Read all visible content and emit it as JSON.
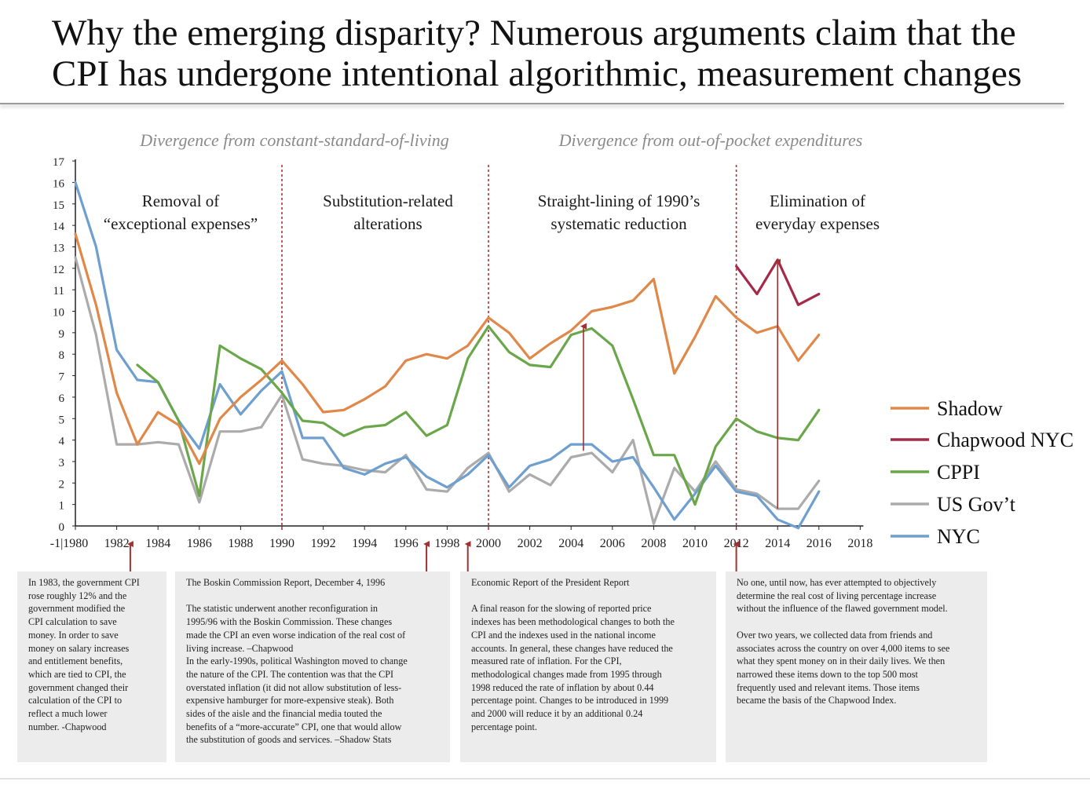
{
  "title": {
    "line1": "Why the emerging disparity? Numerous arguments claim that the",
    "line2": "CPI has undergone intentional algorithmic, measurement changes"
  },
  "colors": {
    "shadow": "#e0884a",
    "chapwood": "#a32a48",
    "cppi": "#6aa74a",
    "usgov": "#ababab",
    "nyc": "#6e9fcf",
    "divider": "#b03030",
    "arrow": "#a33030"
  },
  "chart_data": {
    "type": "line",
    "xlim": [
      1980,
      2018
    ],
    "ylim": [
      0,
      17
    ],
    "x_ticks": [
      "-1|1980",
      "1982",
      "1984",
      "1986",
      "1988",
      "1990",
      "1992",
      "1994",
      "1996",
      "1998",
      "2000",
      "2002",
      "2004",
      "2006",
      "2008",
      "2010",
      "2012",
      "2014",
      "2016",
      "2018"
    ],
    "y_ticks": [
      "0",
      "1",
      "2",
      "3",
      "4",
      "5",
      "6",
      "7",
      "8",
      "9",
      "10",
      "11",
      "12",
      "13",
      "14",
      "15",
      "16",
      "17"
    ],
    "grid": false,
    "legend_position": "right",
    "section_headers": [
      "Divergence from constant-standard-of-living",
      "Divergence from out-of-pocket expenditures"
    ],
    "eras": [
      {
        "line1": "Removal of",
        "line2": "“exceptional expenses”"
      },
      {
        "line1": "Substitution-related",
        "line2": "alterations"
      },
      {
        "line1": "Straight-lining of 1990’s",
        "line2": "systematic reduction"
      },
      {
        "line1": "Elimination of",
        "line2": "everyday expenses"
      }
    ],
    "dividers": [
      1990,
      2000,
      2012
    ],
    "markers": [
      1983,
      1997,
      1999,
      2012
    ],
    "gap_arrows": [
      {
        "x": 2004.6,
        "from": 3.5,
        "to": 9.3
      },
      {
        "x": 2014,
        "from": 0.8,
        "to": 12.3
      }
    ],
    "series": [
      {
        "name": "Shadow",
        "x": [
          1980,
          1981,
          1982,
          1983,
          1984,
          1985,
          1986,
          1987,
          1988,
          1989,
          1990,
          1991,
          1992,
          1993,
          1994,
          1995,
          1996,
          1997,
          1998,
          1999,
          2000,
          2001,
          2002,
          2003,
          2004,
          2005,
          2006,
          2007,
          2008,
          2009,
          2010,
          2011,
          2012,
          2013,
          2014,
          2015,
          2016
        ],
        "y": [
          13.6,
          10.3,
          6.2,
          3.8,
          5.3,
          4.7,
          2.9,
          5.0,
          6.0,
          6.8,
          7.7,
          6.6,
          5.3,
          5.4,
          5.9,
          6.5,
          7.7,
          8.0,
          7.8,
          8.4,
          9.7,
          9.0,
          7.8,
          8.5,
          9.1,
          10.0,
          10.2,
          10.5,
          11.5,
          7.1,
          8.8,
          10.7,
          9.7,
          9.0,
          9.3,
          7.7,
          8.9
        ]
      },
      {
        "name": "Chapwood NYC",
        "x": [
          2012,
          2013,
          2014,
          2015,
          2016
        ],
        "y": [
          12.1,
          10.8,
          12.4,
          10.3,
          10.8
        ]
      },
      {
        "name": "CPPI",
        "x": [
          1983,
          1984,
          1985,
          1986,
          1987,
          1988,
          1989,
          1990,
          1991,
          1992,
          1993,
          1994,
          1995,
          1996,
          1997,
          1998,
          1999,
          2000,
          2001,
          2002,
          2003,
          2004,
          2005,
          2006,
          2007,
          2008,
          2009,
          2010,
          2011,
          2012,
          2013,
          2014,
          2015,
          2016
        ],
        "y": [
          7.5,
          6.7,
          4.9,
          1.4,
          8.4,
          7.8,
          7.3,
          6.2,
          4.9,
          4.8,
          4.2,
          4.6,
          4.7,
          5.3,
          4.2,
          4.7,
          7.8,
          9.3,
          8.1,
          7.5,
          7.4,
          8.9,
          9.2,
          8.4,
          5.9,
          3.3,
          3.3,
          1.0,
          3.7,
          5.0,
          4.4,
          4.1,
          4.0,
          5.4
        ]
      },
      {
        "name": "US Gov’t",
        "x": [
          1980,
          1981,
          1982,
          1983,
          1984,
          1985,
          1986,
          1987,
          1988,
          1989,
          1990,
          1991,
          1992,
          1993,
          1994,
          1995,
          1996,
          1997,
          1998,
          1999,
          2000,
          2001,
          2002,
          2003,
          2004,
          2005,
          2006,
          2007,
          2008,
          2009,
          2010,
          2011,
          2012,
          2013,
          2014,
          2015,
          2016
        ],
        "y": [
          12.5,
          8.9,
          3.8,
          3.8,
          3.9,
          3.8,
          1.1,
          4.4,
          4.4,
          4.6,
          6.1,
          3.1,
          2.9,
          2.8,
          2.6,
          2.5,
          3.3,
          1.7,
          1.6,
          2.7,
          3.4,
          1.6,
          2.4,
          1.9,
          3.2,
          3.4,
          2.5,
          4.0,
          0.1,
          2.7,
          1.6,
          3.0,
          1.7,
          1.5,
          0.8,
          0.8,
          2.1
        ]
      },
      {
        "name": "NYC",
        "x": [
          1980,
          1981,
          1982,
          1983,
          1984,
          1985,
          1986,
          1987,
          1988,
          1989,
          1990,
          1991,
          1992,
          1993,
          1994,
          1995,
          1996,
          1997,
          1998,
          1999,
          2000,
          2001,
          2002,
          2003,
          2004,
          2005,
          2006,
          2007,
          2008,
          2009,
          2010,
          2011,
          2012,
          2013,
          2014,
          2015,
          2016
        ],
        "y": [
          16.0,
          13.0,
          8.2,
          6.8,
          6.7,
          4.9,
          3.6,
          6.6,
          5.2,
          6.3,
          7.2,
          4.1,
          4.1,
          2.7,
          2.4,
          2.9,
          3.2,
          2.3,
          1.8,
          2.4,
          3.3,
          1.8,
          2.8,
          3.1,
          3.8,
          3.8,
          3.0,
          3.2,
          1.8,
          0.3,
          1.5,
          2.8,
          1.6,
          1.4,
          0.3,
          -0.1,
          1.6
        ]
      }
    ]
  },
  "notes": [
    {
      "text": "In 1983, the government CPI\nrose roughly 12% and the\ngovernment modified the\nCPI calculation to save\nmoney. In order to save\nmoney on salary increases\nand entitlement benefits,\nwhich are tied to CPI, the\ngovernment changed their\ncalculation of the CPI to\nreflect a much lower\nnumber. -Chapwood"
    },
    {
      "heading": "The Boskin Commission Report, December 4, 1996",
      "text": "The statistic underwent another reconfiguration in\n1995/96 with the Boskin Commission. These changes\nmade the CPI an even worse indication of the real cost of\nliving increase. –Chapwood\nIn the early-1990s, political Washington moved to change\nthe nature of the CPI. The contention was that the CPI\noverstated inflation (it did not allow substitution of less-\nexpensive hamburger for more-expensive steak). Both\nsides of the aisle and the financial media touted the\nbenefits of a “more-accurate” CPI, one that would allow\nthe substitution of goods and services. –Shadow Stats"
    },
    {
      "heading": "Economic Report of the President Report",
      "text": "A final reason for the slowing of reported price\nindexes has been methodological changes to both the\nCPI and the indexes used in the national income\naccounts. In general, these changes have reduced the\nmeasured rate of inflation. For the CPI,\nmethodological changes made from 1995 through\n1998 reduced the rate of inflation by about 0.44\npercentage point. Changes to be introduced in 1999\nand 2000 will reduce it by an additional 0.24\npercentage point."
    },
    {
      "heading": "No one, until now, has ever attempted to objectively\ndetermine the real cost of living percentage increase\nwithout the influence of the flawed government model.",
      "text": "Over two years, we collected data from friends and\nassociates across the country on over 4,000 items to see\nwhat they spent money on in their daily lives. We then\nnarrowed these items down to the top 500 most\nfrequently used and relevant items. Those items\nbecame the basis of the Chapwood Index."
    }
  ]
}
